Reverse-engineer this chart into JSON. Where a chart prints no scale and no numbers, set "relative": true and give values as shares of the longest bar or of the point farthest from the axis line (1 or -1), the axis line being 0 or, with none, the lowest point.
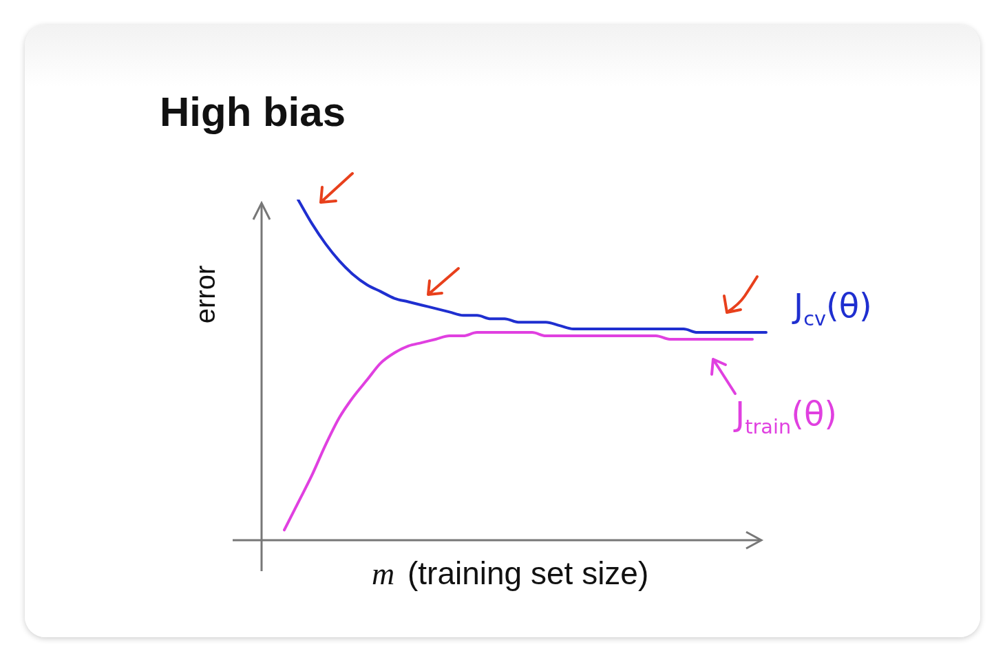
{
  "chart_data": {
    "type": "line",
    "title": "High bias",
    "xlabel": "m (training set size)",
    "ylabel": "error",
    "relative": true,
    "legend": false,
    "marker": "none",
    "categories": [
      null,
      null,
      null,
      null,
      null,
      null,
      null,
      null,
      null,
      null,
      null,
      null,
      null,
      null,
      null,
      null,
      null,
      null,
      null,
      null,
      null,
      null,
      null,
      null,
      null,
      null,
      null,
      null,
      null,
      null,
      null,
      null,
      null,
      null,
      null,
      null
    ],
    "series": [
      {
        "name": "J$_{cv}$(θ)",
        "color": "#1f2fd0",
        "values": [
          null,
          1.0,
          0.93,
          0.87,
          0.82,
          0.78,
          0.75,
          0.73,
          0.71,
          0.7,
          0.69,
          0.68,
          0.67,
          0.66,
          0.66,
          0.65,
          0.65,
          0.64,
          0.64,
          0.64,
          0.63,
          0.62,
          0.62,
          0.62,
          0.62,
          0.62,
          0.62,
          0.62,
          0.62,
          0.62,
          0.61,
          0.61,
          0.61,
          0.61,
          0.61,
          0.61
        ]
      },
      {
        "name": "J$_{train}$(θ)",
        "color": "#e040e0",
        "values": [
          0.03,
          0.11,
          0.19,
          0.28,
          0.36,
          0.42,
          0.47,
          0.52,
          0.55,
          0.57,
          0.58,
          0.59,
          0.6,
          0.6,
          0.61,
          0.61,
          0.61,
          0.61,
          0.61,
          0.6,
          0.6,
          0.6,
          0.6,
          0.6,
          0.6,
          0.6,
          0.6,
          0.6,
          0.59,
          0.59,
          0.59,
          0.59,
          0.59,
          0.59,
          0.59,
          null
        ]
      }
    ]
  }
}
